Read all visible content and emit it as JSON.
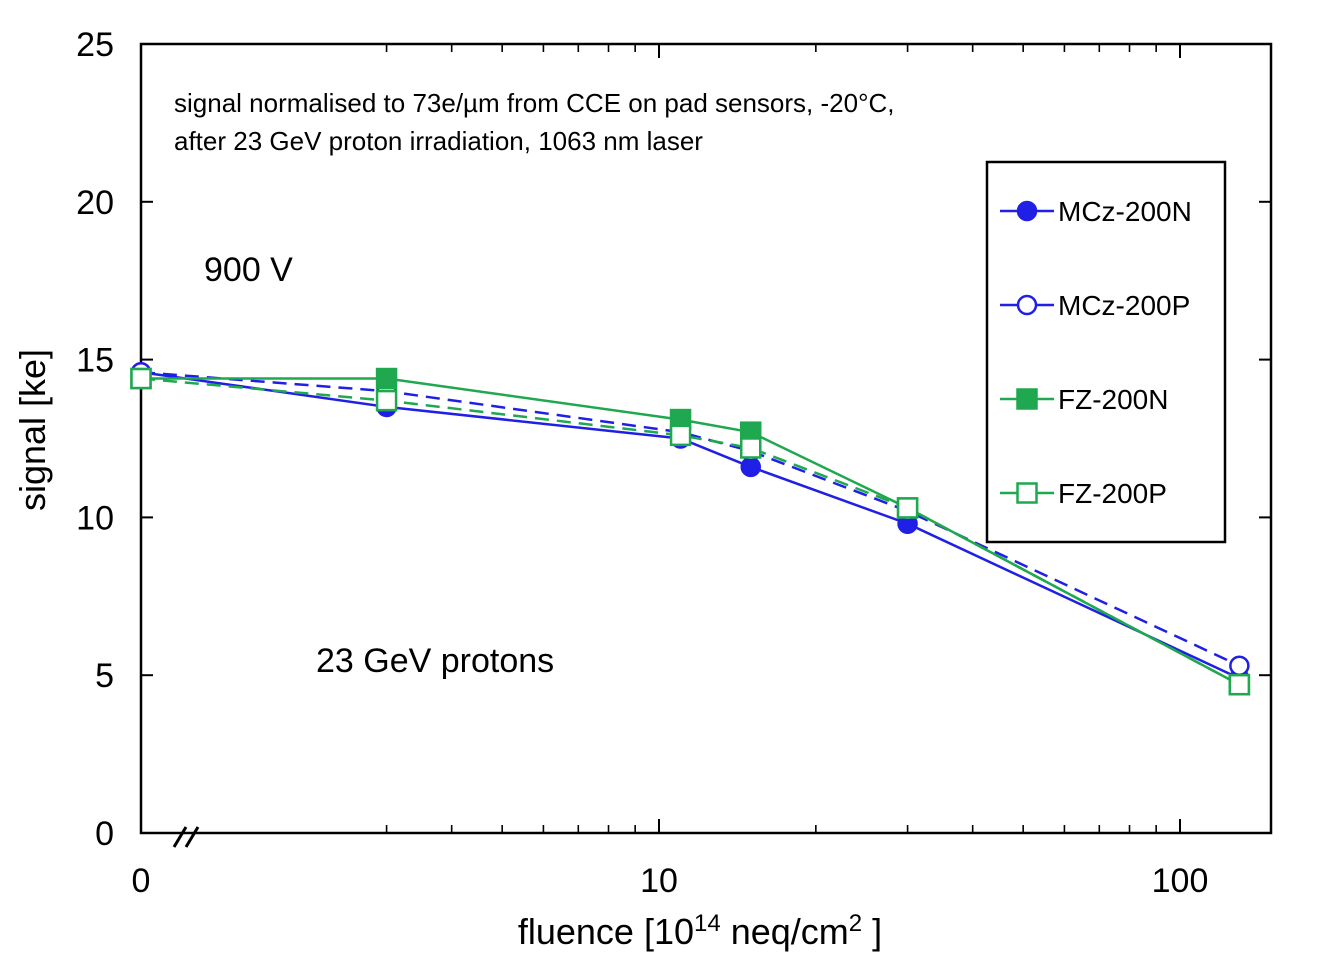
{
  "chart_data": {
    "type": "line",
    "title": "",
    "xlabel_main": "fluence [10",
    "xlabel_sup1": "14",
    "xlabel_mid": " neq/cm",
    "xlabel_sup2": "2",
    "xlabel_end": " ]",
    "ylabel": "signal [ke]",
    "x_scale": "log with broken axis at 0",
    "x_ticks": [
      {
        "value": 0,
        "label": "0"
      },
      {
        "value": 10,
        "label": "10"
      },
      {
        "value": 100,
        "label": "100"
      }
    ],
    "y_ticks": [
      {
        "value": 0,
        "label": "0"
      },
      {
        "value": 5,
        "label": "5"
      },
      {
        "value": 10,
        "label": "10"
      },
      {
        "value": 15,
        "label": "15"
      },
      {
        "value": 20,
        "label": "20"
      },
      {
        "value": 25,
        "label": "25"
      }
    ],
    "ylim": [
      0,
      25
    ],
    "annotations": {
      "note_line1": "signal normalised to 73e/µm from CCE on pad sensors, -20°C,",
      "note_line2": "after 23 GeV proton irradiation, 1063 nm laser",
      "voltage": "900 V",
      "particles": "23 GeV protons"
    },
    "series": [
      {
        "name": "MCz-200N",
        "color": "#1f1fe6",
        "dash": "solid",
        "marker": "circle-filled",
        "x": [
          0,
          3,
          11,
          15,
          30,
          130
        ],
        "y": [
          14.6,
          13.5,
          12.5,
          11.6,
          9.8,
          4.9
        ]
      },
      {
        "name": "MCz-200P",
        "color": "#1f1fe6",
        "dash": "dashed",
        "marker": "circle-open",
        "x": [
          0,
          3,
          11,
          15,
          30,
          130
        ],
        "y": [
          14.6,
          14.0,
          12.7,
          12.1,
          10.2,
          5.3
        ]
      },
      {
        "name": "FZ-200N",
        "color": "#1fa84f",
        "dash": "solid",
        "marker": "square-filled",
        "x": [
          0,
          3,
          11,
          15,
          30,
          130
        ],
        "y": [
          14.4,
          14.4,
          13.1,
          12.7,
          10.3,
          4.7
        ]
      },
      {
        "name": "FZ-200P",
        "color": "#1fa84f",
        "dash": "dashed",
        "marker": "square-open",
        "x": [
          0,
          3,
          11,
          15,
          30,
          130
        ],
        "y": [
          14.4,
          13.7,
          12.6,
          12.2,
          10.3,
          4.7
        ]
      }
    ]
  }
}
